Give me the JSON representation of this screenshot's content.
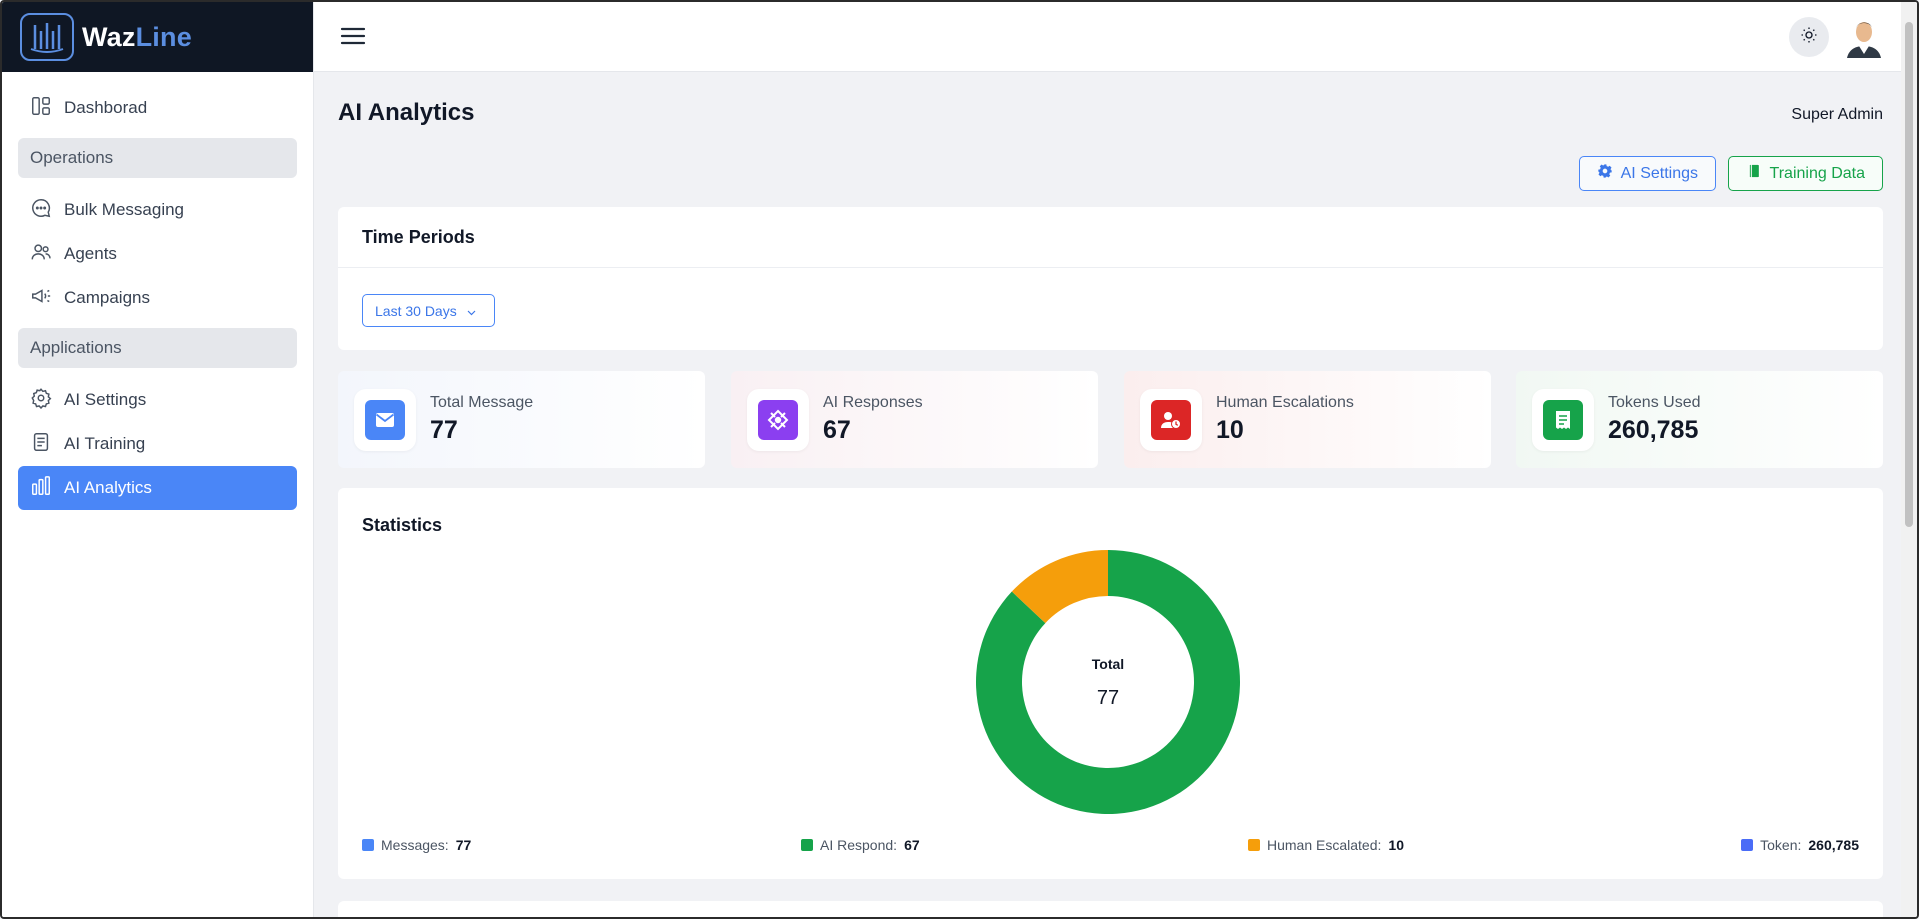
{
  "brand": {
    "name_part1": "Waz",
    "name_part2": "Line"
  },
  "sidebar": {
    "items": [
      {
        "label": "Dashborad",
        "icon": "dashboard-icon"
      },
      {
        "group": "Operations"
      },
      {
        "label": "Bulk Messaging",
        "icon": "chat-bubble-icon"
      },
      {
        "label": "Agents",
        "icon": "users-icon"
      },
      {
        "label": "Campaigns",
        "icon": "megaphone-icon"
      },
      {
        "group": "Applications"
      },
      {
        "label": "AI Settings",
        "icon": "gear-icon"
      },
      {
        "label": "AI Training",
        "icon": "notebook-icon"
      },
      {
        "label": "AI Analytics",
        "icon": "bar-chart-icon",
        "active": true
      }
    ]
  },
  "header": {
    "user_role": "Super Admin"
  },
  "page": {
    "title": "AI Analytics",
    "ai_settings_button": "AI Settings",
    "training_data_button": "Training Data"
  },
  "time_periods": {
    "title": "Time Periods",
    "selected": "Last 30 Days"
  },
  "stats": [
    {
      "label": "Total Message",
      "value": "77",
      "color": "#4a86f7",
      "icon": "envelope-icon"
    },
    {
      "label": "AI Responses",
      "value": "67",
      "color": "#8b3ff0",
      "icon": "ai-chip-icon"
    },
    {
      "label": "Human Escalations",
      "value": "10",
      "color": "#dc2626",
      "icon": "user-clock-icon"
    },
    {
      "label": "Tokens Used",
      "value": "260,785",
      "color": "#16a34a",
      "icon": "receipt-icon"
    }
  ],
  "statistics": {
    "title": "Statistics",
    "center_label": "Total",
    "center_value": "77",
    "legend": [
      {
        "name": "Messages:",
        "value": "77",
        "color": "#4a86f7"
      },
      {
        "name": "AI Respond:",
        "value": "67",
        "color": "#16a34a"
      },
      {
        "name": "Human Escalated:",
        "value": "10",
        "color": "#f59e0b"
      },
      {
        "name": "Token:",
        "value": "260,785",
        "color": "#4a6cf7"
      }
    ]
  },
  "chart_data": {
    "type": "pie",
    "categories": [
      "AI Respond",
      "Human Escalated"
    ],
    "values": [
      67,
      10
    ],
    "colors": [
      "#16a34a",
      "#f59e0b"
    ]
  }
}
